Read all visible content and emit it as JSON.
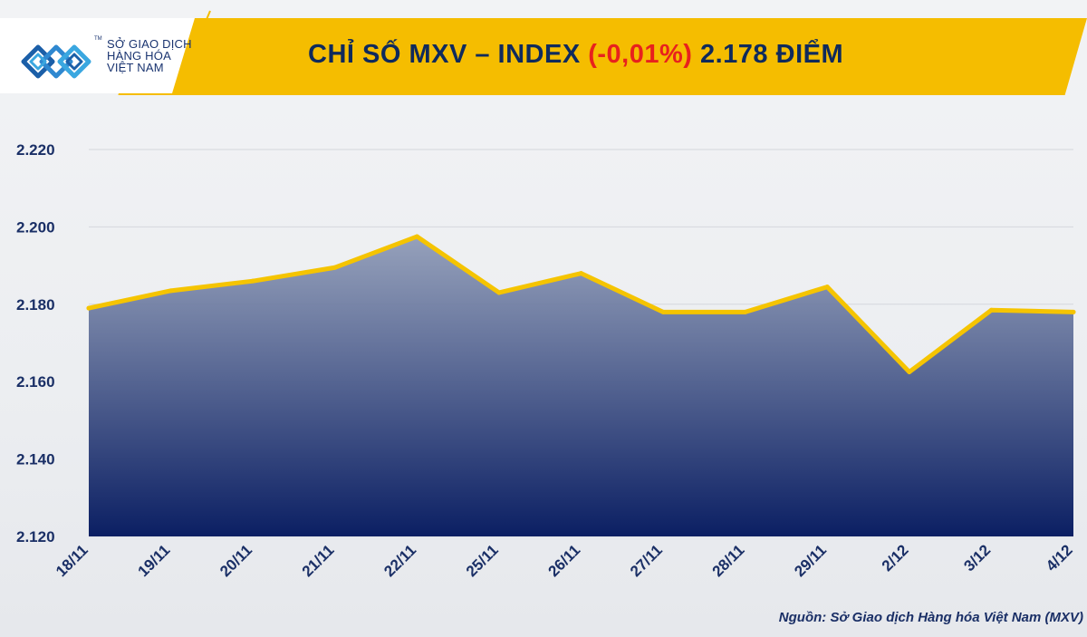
{
  "header": {
    "logo_lines": [
      "SỞ GIAO DỊCH",
      "HÀNG HÓA",
      "VIỆT NAM"
    ],
    "logo_tm": "TM",
    "title_prefix": "CHỈ SỐ MXV – INDEX ",
    "title_change": "(-0,01%)",
    "title_suffix": " 2.178 ĐIỂM"
  },
  "chart_data": {
    "type": "area",
    "categories": [
      "18/11",
      "19/11",
      "20/11",
      "21/11",
      "22/11",
      "25/11",
      "26/11",
      "27/11",
      "28/11",
      "29/11",
      "2/12",
      "3/12",
      "4/12"
    ],
    "values": [
      2179,
      2183.5,
      2186,
      2189.5,
      2197.5,
      2183,
      2188,
      2178,
      2178,
      2184.5,
      2162.5,
      2178.5,
      2178
    ],
    "ylim": [
      2120,
      2220
    ],
    "y_ticks": [
      2120,
      2140,
      2160,
      2180,
      2200,
      2220
    ],
    "y_tick_labels": [
      "2.120",
      "2.140",
      "2.160",
      "2.180",
      "2.200",
      "2.220"
    ],
    "grid": true,
    "line_color": "#f5c400",
    "fill_top_color": "#8e9ab6",
    "fill_bottom_color": "#0b1f63"
  },
  "footer": {
    "source": "Nguồn: Sở Giao dịch Hàng hóa Việt Nam (MXV)"
  },
  "colors": {
    "banner": "#f5bd00",
    "title": "#0f2a5c",
    "title_change": "#e8211d",
    "axis_text": "#1a2f66"
  }
}
